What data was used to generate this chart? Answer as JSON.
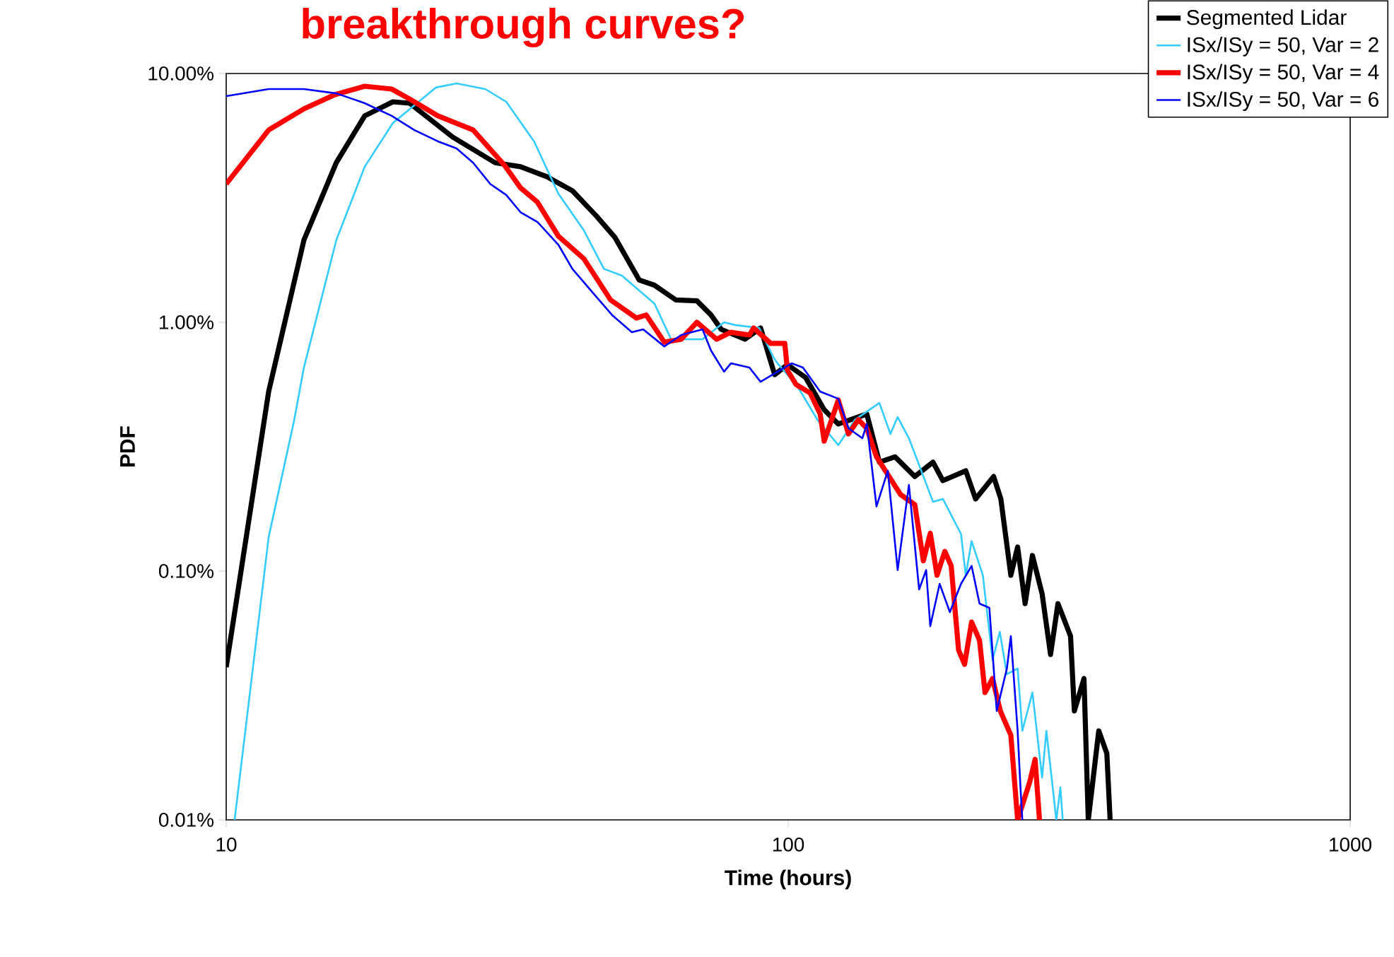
{
  "chart_data": {
    "type": "line",
    "title": "breakthrough curves?",
    "xlabel": "Time (hours)",
    "ylabel": "PDF",
    "log": "xy",
    "legend": "top right",
    "marker": "none",
    "line_style": "solid",
    "xlim": [
      10,
      1000
    ],
    "xticks": [
      10,
      100,
      1000
    ],
    "ylim": [
      0.01,
      10
    ],
    "yticks": [
      {
        "value": 10,
        "label": "10.00%"
      },
      {
        "value": 1,
        "label": "1.00%"
      },
      {
        "value": 0.1,
        "label": "0.10%"
      },
      {
        "value": 0.01,
        "label": "0.01%"
      }
    ],
    "series": [
      {
        "name": "Segmented Lidar",
        "color": "#000000",
        "x": [
          10,
          11.9,
          13.75,
          15.7,
          17.64,
          19.8,
          21.2,
          25.3,
          30.1,
          33.4,
          37.2,
          41.3,
          45.6,
          49.2,
          54.3,
          57.8,
          63.1,
          68.8,
          72.9,
          76.0,
          83.8,
          89.3,
          94.6,
          99.7,
          107.4,
          115.9,
          122.8,
          138,
          145.3,
          154.9,
          168,
          181,
          188.5,
          207,
          215.5,
          232,
          239,
          249,
          256,
          264,
          272,
          283,
          293,
          302,
          318,
          323,
          336,
          342,
          357,
          369,
          374
        ],
        "values": [
          0.0411,
          0.527,
          2.14,
          4.38,
          6.76,
          7.7,
          7.6,
          5.55,
          4.38,
          4.22,
          3.85,
          3.38,
          2.67,
          2.19,
          1.48,
          1.41,
          1.23,
          1.22,
          1.07,
          0.937,
          0.855,
          0.949,
          0.616,
          0.676,
          0.6,
          0.445,
          0.39,
          0.428,
          0.274,
          0.288,
          0.24,
          0.274,
          0.231,
          0.253,
          0.195,
          0.24,
          0.195,
          0.0962,
          0.125,
          0.074,
          0.1155,
          0.0811,
          0.0462,
          0.074,
          0.0548,
          0.0274,
          0.037,
          0.01,
          0.0228,
          0.0185,
          0.01
        ]
      },
      {
        "name": "ISx/ISy = 50, Var = 2",
        "color": "#33ccff",
        "x": [
          10.35,
          11.9,
          13.2,
          13.75,
          15.7,
          17.64,
          19.8,
          23.6,
          25.7,
          28.9,
          31.5,
          35.3,
          39.0,
          43.3,
          47.0,
          50.6,
          57.8,
          61.9,
          70.4,
          76.9,
          80.5,
          88.8,
          94.2,
          95.7,
          103.3,
          105.6,
          112.7,
          122.8,
          131.5,
          145.3,
          152,
          156.6,
          164,
          181,
          188.5,
          203,
          207,
          212,
          222,
          231,
          238,
          245,
          256,
          261,
          272,
          283,
          288,
          300,
          305,
          308
        ],
        "values": [
          0.01,
          0.137,
          0.4,
          0.658,
          2.14,
          4.22,
          6.33,
          8.78,
          9.12,
          8.66,
          7.7,
          5.34,
          3.29,
          2.34,
          1.64,
          1.54,
          1.19,
          0.855,
          0.855,
          1.0,
          0.975,
          0.949,
          0.721,
          0.684,
          0.562,
          0.52,
          0.406,
          0.321,
          0.406,
          0.474,
          0.356,
          0.416,
          0.342,
          0.19,
          0.195,
          0.141,
          0.0962,
          0.132,
          0.0962,
          0.0439,
          0.057,
          0.0385,
          0.0406,
          0.0228,
          0.0325,
          0.0148,
          0.0228,
          0.01,
          0.0135,
          0.01
        ]
      },
      {
        "name": "ISx/ISy = 50, Var = 4",
        "color": "#ff0000",
        "x": [
          10,
          11.9,
          13.75,
          15.6,
          17.64,
          19.7,
          21.2,
          23.8,
          27.5,
          31.3,
          33.4,
          35.8,
          39.0,
          43.3,
          48.3,
          53.7,
          55.9,
          60.2,
          64.5,
          68.8,
          74.6,
          79.1,
          85.3,
          86.8,
          93.1,
          98.6,
          99.7,
          103.3,
          109.4,
          114.0,
          115.9,
          122.8,
          128,
          133.3,
          138,
          143.6,
          158.5,
          168,
          174,
          179,
          184,
          190,
          195,
          201,
          206,
          212,
          219,
          224,
          231,
          238.5,
          249,
          256,
          269,
          275,
          280
        ],
        "values": [
          3.6,
          5.93,
          7.21,
          8.22,
          8.89,
          8.66,
          7.9,
          6.76,
          5.93,
          4.27,
          3.47,
          3.04,
          2.22,
          1.8,
          1.23,
          1.04,
          1.07,
          0.832,
          0.855,
          1.0,
          0.855,
          0.912,
          0.889,
          0.949,
          0.822,
          0.822,
          0.641,
          0.562,
          0.52,
          0.428,
          0.333,
          0.487,
          0.356,
          0.406,
          0.375,
          0.288,
          0.203,
          0.185,
          0.11,
          0.142,
          0.0962,
          0.12,
          0.105,
          0.0481,
          0.0422,
          0.0624,
          0.0527,
          0.0325,
          0.037,
          0.0274,
          0.0219,
          0.01,
          0.0142,
          0.0175,
          0.01
        ]
      },
      {
        "name": "ISx/ISy = 50, Var = 6",
        "color": "#0000ff",
        "x": [
          10,
          11.9,
          13.75,
          15.7,
          17.64,
          19.7,
          21.6,
          23.8,
          25.7,
          27.5,
          29.5,
          31.5,
          33.4,
          35.8,
          39.0,
          41.3,
          45.1,
          48.6,
          52.7,
          55.2,
          60.2,
          64.5,
          70.4,
          72.9,
          76.9,
          79.1,
          85.3,
          89.3,
          101.4,
          106.2,
          114.0,
          122.8,
          128,
          135.5,
          138,
          143.6,
          150.4,
          156.6,
          164,
          171,
          176,
          179,
          186,
          194,
          203,
          212,
          219,
          228,
          235,
          245,
          249,
          256,
          259,
          261
        ],
        "values": [
          8.11,
          8.66,
          8.66,
          8.32,
          7.6,
          6.76,
          5.93,
          5.34,
          5.0,
          4.38,
          3.6,
          3.25,
          2.77,
          2.53,
          2.05,
          1.64,
          1.3,
          1.07,
          0.912,
          0.937,
          0.8,
          0.889,
          0.937,
          0.77,
          0.633,
          0.684,
          0.658,
          0.577,
          0.684,
          0.658,
          0.527,
          0.493,
          0.375,
          0.342,
          0.39,
          0.182,
          0.253,
          0.101,
          0.222,
          0.0844,
          0.101,
          0.0601,
          0.0889,
          0.0684,
          0.0889,
          0.105,
          0.074,
          0.0712,
          0.0274,
          0.0406,
          0.0548,
          0.0228,
          0.0135,
          0.01
        ]
      }
    ]
  }
}
